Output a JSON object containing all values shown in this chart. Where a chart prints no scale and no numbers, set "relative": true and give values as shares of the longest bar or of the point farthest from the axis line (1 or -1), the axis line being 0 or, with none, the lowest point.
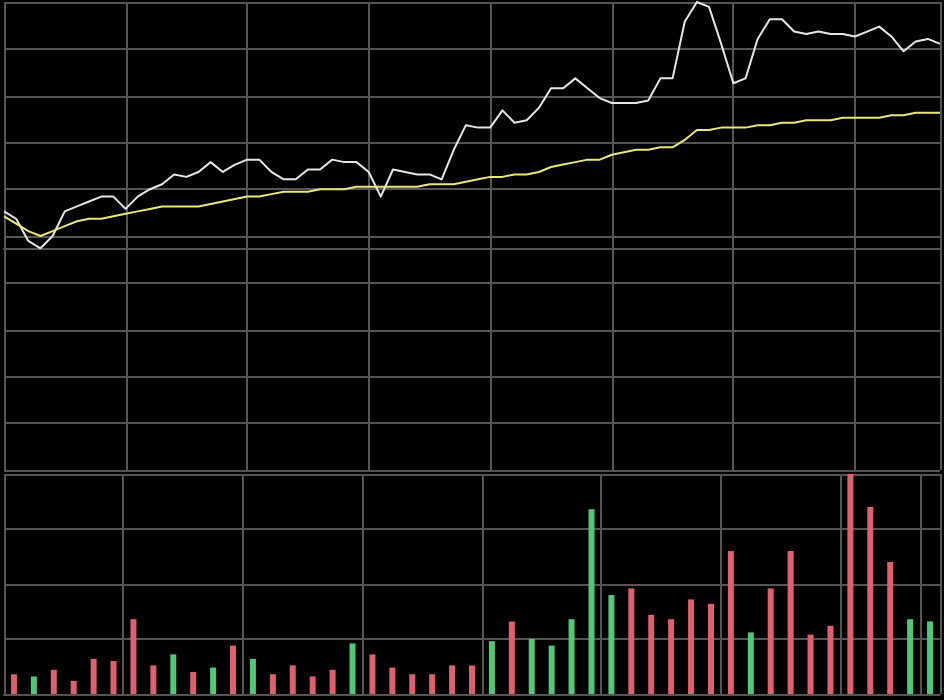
{
  "chart_data": [
    {
      "type": "line",
      "relative": true,
      "grid": true,
      "tick_labels": false,
      "categories": [
        null,
        null,
        null,
        null,
        null,
        null,
        null,
        null,
        null,
        null,
        null,
        null,
        null,
        null,
        null,
        null,
        null,
        null,
        null,
        null,
        null,
        null,
        null,
        null,
        null,
        null,
        null,
        null,
        null,
        null,
        null,
        null,
        null,
        null,
        null,
        null,
        null,
        null,
        null,
        null,
        null,
        null,
        null,
        null,
        null,
        null,
        null,
        null,
        null,
        null,
        null,
        null,
        null,
        null,
        null,
        null,
        null,
        null,
        null,
        null,
        null,
        null,
        null,
        null,
        null,
        null,
        null,
        null,
        null,
        null,
        null,
        null,
        null,
        null,
        null,
        null,
        null,
        null
      ],
      "series": [
        {
          "color": "#e6e6e6",
          "values": [
            0.15,
            0.12,
            0.03,
            0,
            0.05,
            0.15,
            0.17,
            0.19,
            0.21,
            0.21,
            0.16,
            0.21,
            0.24,
            0.26,
            0.3,
            0.29,
            0.31,
            0.35,
            0.31,
            0.34,
            0.36,
            0.36,
            0.31,
            0.28,
            0.28,
            0.32,
            0.32,
            0.36,
            0.35,
            0.35,
            0.31,
            0.21,
            0.32,
            0.31,
            0.3,
            0.3,
            0.28,
            0.4,
            0.5,
            0.49,
            0.49,
            0.56,
            0.51,
            0.52,
            0.57,
            0.65,
            0.65,
            0.69,
            0.65,
            0.61,
            0.59,
            0.59,
            0.59,
            0.6,
            0.69,
            0.69,
            0.92,
            1,
            0.98,
            0.83,
            0.67,
            0.69,
            0.85,
            0.93,
            0.93,
            0.88,
            0.87,
            0.88,
            0.87,
            0.87,
            0.86,
            0.88,
            0.9,
            0.86,
            0.8,
            0.84,
            0.85,
            0.83
          ]
        },
        {
          "color": "#e8e87a",
          "values": [
            0.13,
            0.1,
            0.07,
            0.05,
            0.07,
            0.09,
            0.11,
            0.12,
            0.12,
            0.13,
            0.14,
            0.15,
            0.16,
            0.17,
            0.17,
            0.17,
            0.17,
            0.18,
            0.19,
            0.2,
            0.21,
            0.21,
            0.22,
            0.23,
            0.23,
            0.23,
            0.24,
            0.24,
            0.24,
            0.25,
            0.25,
            0.25,
            0.25,
            0.25,
            0.25,
            0.26,
            0.26,
            0.26,
            0.27,
            0.28,
            0.29,
            0.29,
            0.3,
            0.3,
            0.31,
            0.33,
            0.34,
            0.35,
            0.36,
            0.36,
            0.38,
            0.39,
            0.4,
            0.4,
            0.41,
            0.41,
            0.44,
            0.48,
            0.48,
            0.49,
            0.49,
            0.49,
            0.5,
            0.5,
            0.51,
            0.51,
            0.52,
            0.52,
            0.52,
            0.53,
            0.53,
            0.53,
            0.53,
            0.54,
            0.54,
            0.55,
            0.55,
            0.55
          ]
        }
      ]
    },
    {
      "type": "bar",
      "relative": true,
      "grid": true,
      "tick_labels": false,
      "categories": [
        null,
        null,
        null,
        null,
        null,
        null,
        null,
        null,
        null,
        null,
        null,
        null,
        null,
        null,
        null,
        null,
        null,
        null,
        null,
        null,
        null,
        null,
        null,
        null,
        null,
        null,
        null,
        null,
        null,
        null,
        null,
        null,
        null,
        null,
        null,
        null,
        null,
        null,
        null,
        null,
        null,
        null,
        null,
        null,
        null,
        null,
        null
      ],
      "values": [
        0.09,
        0.08,
        0.11,
        0.06,
        0.16,
        0.15,
        0.34,
        0.13,
        0.18,
        0.1,
        0.12,
        0.22,
        0.16,
        0.09,
        0.13,
        0.08,
        0.11,
        0.23,
        0.18,
        0.12,
        0.09,
        0.09,
        0.13,
        0.13,
        0.24,
        0.33,
        0.25,
        0.22,
        0.34,
        0.84,
        0.45,
        0.48,
        0.36,
        0.34,
        0.43,
        0.41,
        0.65,
        0.28,
        0.48,
        0.65,
        0.27,
        0.31,
        1,
        0.85,
        0.6,
        0.34,
        0.33
      ],
      "colors": [
        "#e06070",
        "#50c878",
        "#e06070",
        "#e06070",
        "#e06070",
        "#e06070",
        "#e06070",
        "#e06070",
        "#50c878",
        "#e06070",
        "#50c878",
        "#e06070",
        "#50c878",
        "#e06070",
        "#e06070",
        "#e06070",
        "#e06070",
        "#50c878",
        "#e06070",
        "#e06070",
        "#e06070",
        "#e06070",
        "#e06070",
        "#e06070",
        "#50c878",
        "#e06070",
        "#50c878",
        "#50c878",
        "#50c878",
        "#50c878",
        "#50c878",
        "#e06070",
        "#e06070",
        "#e06070",
        "#e06070",
        "#e06070",
        "#e06070",
        "#50c878",
        "#e06070",
        "#e06070",
        "#e06070",
        "#e06070",
        "#e06070",
        "#e06070",
        "#e06070",
        "#50c878",
        "#50c878"
      ]
    }
  ]
}
